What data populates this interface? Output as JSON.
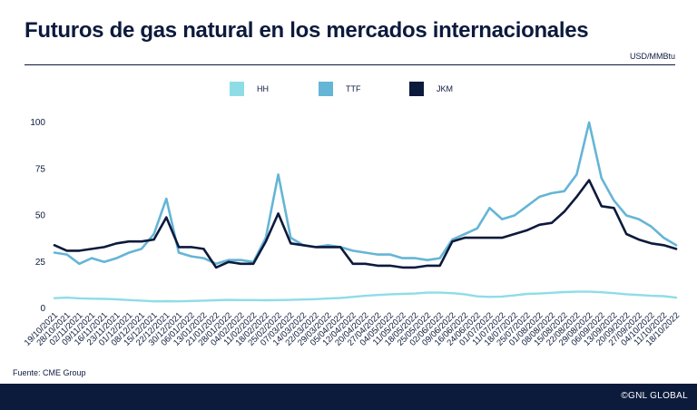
{
  "title": "Futuros de gas natural en los mercados internacionales",
  "unit": "USD/MMBtu",
  "source": "Fuente: CME Group",
  "brand": "©GNL GLOBAL",
  "colors": {
    "HH": "#8edde6",
    "TTF": "#65b5d6",
    "JKM": "#0c1a3c",
    "text": "#0c1a3c"
  },
  "chart_data": {
    "type": "line",
    "ylim": [
      0,
      100
    ],
    "yticks": [
      0,
      25,
      50,
      75,
      100
    ],
    "x_tick_labels": [
      "19/10/2021",
      "28/10/2021",
      "02/11/2021",
      "09/11/2021",
      "16/11/2021",
      "23/11/2021",
      "01/12/2021",
      "08/12/2021",
      "15/12/2021",
      "22/12/2021",
      "30/12/2021",
      "06/01/2022",
      "13/01/2022",
      "21/01/2022",
      "28/01/2022",
      "04/02/2022",
      "11/02/2022",
      "18/02/2022",
      "25/02/2022",
      "07/03/2022",
      "14/03/2022",
      "22/03/2022",
      "29/03/2022",
      "05/04/2022",
      "12/04/2022",
      "20/04/2022",
      "27/04/2022",
      "04/05/2022",
      "11/05/2022",
      "18/05/2022",
      "25/05/2022",
      "02/06/2022",
      "09/06/2022",
      "16/06/2022",
      "24/06/2022",
      "01/07/2022",
      "11/07/2022",
      "18/07/2022",
      "25/07/2022",
      "01/08/2022",
      "08/08/2022",
      "15/08/2022",
      "22/08/2022",
      "29/08/2022",
      "06/09/2022",
      "13/09/2022",
      "20/09/2022",
      "27/09/2022",
      "04/10/2022",
      "11/10/2022",
      "18/10/2022"
    ],
    "series": [
      {
        "name": "HH",
        "values": [
          5.5,
          5.8,
          5.4,
          5.2,
          5.1,
          4.9,
          4.5,
          4.2,
          3.8,
          3.9,
          3.8,
          4.0,
          4.2,
          4.4,
          4.6,
          4.5,
          4.5,
          4.4,
          4.5,
          4.6,
          4.8,
          5.0,
          5.3,
          5.6,
          6.2,
          6.8,
          7.2,
          7.6,
          7.8,
          8.0,
          8.5,
          8.5,
          8.2,
          7.6,
          6.5,
          6.2,
          6.4,
          7.0,
          7.8,
          8.0,
          8.4,
          8.8,
          9.0,
          9.0,
          8.7,
          8.2,
          7.6,
          7.2,
          6.8,
          6.6,
          5.8
        ]
      },
      {
        "name": "TTF",
        "values": [
          30,
          29,
          24,
          27,
          25,
          27,
          30,
          32,
          40,
          59,
          30,
          28,
          27,
          24,
          26,
          26,
          25,
          38,
          72,
          38,
          34,
          33,
          34,
          33,
          31,
          30,
          29,
          29,
          27,
          27,
          26,
          27,
          37,
          40,
          43,
          54,
          48,
          50,
          55,
          60,
          62,
          63,
          72,
          100,
          70,
          58,
          50,
          48,
          44,
          38,
          34
        ]
      },
      {
        "name": "JKM",
        "values": [
          34,
          31,
          31,
          32,
          33,
          35,
          36,
          36,
          37,
          49,
          33,
          33,
          32,
          22,
          25,
          24,
          24,
          36,
          51,
          35,
          34,
          33,
          33,
          33,
          24,
          24,
          23,
          23,
          22,
          22,
          23,
          23,
          36,
          38,
          38,
          38,
          38,
          40,
          42,
          45,
          46,
          52,
          60,
          69,
          55,
          54,
          40,
          37,
          35,
          34,
          32
        ]
      }
    ]
  },
  "legend": [
    {
      "label": "HH",
      "key": "HH"
    },
    {
      "label": "TTF",
      "key": "TTF"
    },
    {
      "label": "JKM",
      "key": "JKM"
    }
  ]
}
